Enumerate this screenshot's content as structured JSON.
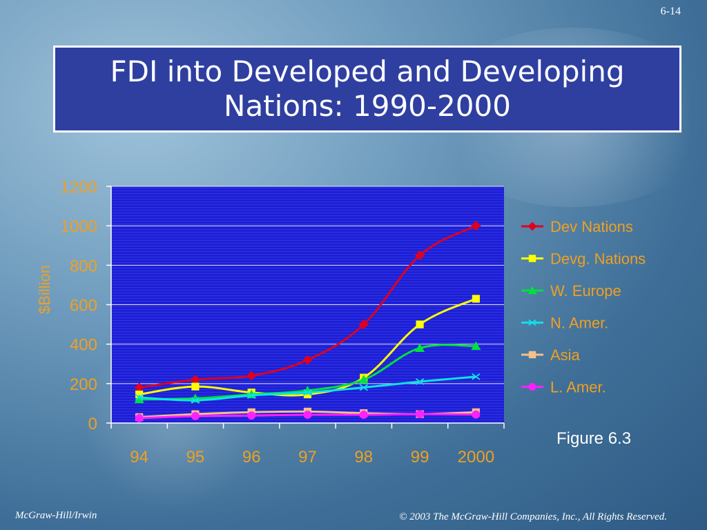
{
  "slide_number": "6-14",
  "title_lines": [
    "FDI into Developed and Developing",
    "Nations: 1990-2000"
  ],
  "figure_label": "Figure 6.3",
  "footer": {
    "left": "McGraw-Hill/Irwin",
    "right": "© 2003 The McGraw-Hill Companies, Inc., All Rights Reserved."
  },
  "chart_data": {
    "type": "line",
    "title": "",
    "xlabel": "",
    "ylabel": "$Billion",
    "categories": [
      "94",
      "95",
      "96",
      "97",
      "98",
      "99",
      "2000"
    ],
    "ylim": [
      0,
      1200
    ],
    "yticks": [
      0,
      200,
      400,
      600,
      800,
      1000,
      1200
    ],
    "grid": true,
    "legend_position": "right",
    "colors": {
      "plot_bg": "#1d1fd6",
      "axis_text": "#f0a020",
      "grid": "#ffffff"
    },
    "series": [
      {
        "name": "Dev Nations",
        "color": "#e0001e",
        "marker": "diamond",
        "values": [
          180,
          220,
          240,
          320,
          500,
          850,
          1000
        ]
      },
      {
        "name": "Devg. Nations",
        "color": "#ffff00",
        "marker": "square",
        "values": [
          145,
          185,
          155,
          145,
          230,
          500,
          630
        ]
      },
      {
        "name": "W. Europe",
        "color": "#00e040",
        "marker": "triangle",
        "values": [
          120,
          125,
          145,
          165,
          220,
          380,
          390
        ]
      },
      {
        "name": "N. Amer.",
        "color": "#10e0e8",
        "marker": "x",
        "values": [
          130,
          115,
          140,
          155,
          180,
          210,
          235
        ]
      },
      {
        "name": "Asia",
        "color": "#f5c08a",
        "marker": "square",
        "values": [
          30,
          45,
          55,
          58,
          50,
          45,
          55
        ]
      },
      {
        "name": "L. Amer.",
        "color": "#ff20ff",
        "marker": "circle",
        "values": [
          25,
          35,
          38,
          42,
          42,
          45,
          43
        ]
      }
    ]
  }
}
